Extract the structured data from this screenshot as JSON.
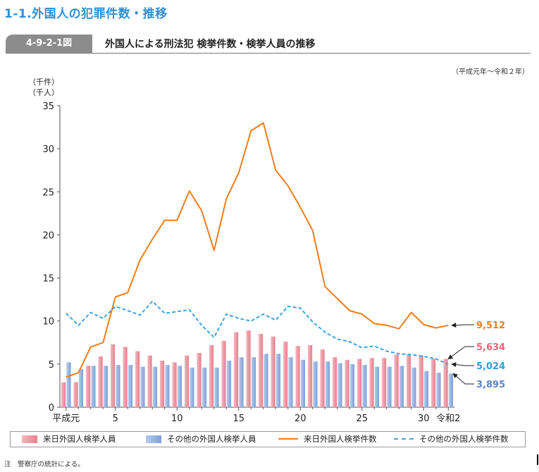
{
  "page": {
    "section_title": "1-1.外国人の犯罪件数・推移",
    "figure_number": "4-9-2-1図",
    "figure_title": "外国人による刑法犯 検挙件数・検挙人員の推移",
    "period_note": "（平成元年～令和２年）",
    "source_note": "注　警察庁の統計による。"
  },
  "chart_data": {
    "type": "bar",
    "title": "外国人による刑法犯 検挙件数・検挙人員の推移",
    "ylabel_lines": [
      "（千件）",
      "（千人）"
    ],
    "ylim": [
      0,
      35
    ],
    "yticks": [
      0,
      5,
      10,
      15,
      20,
      25,
      30,
      35
    ],
    "categories": [
      "平成元",
      "2",
      "3",
      "4",
      "5",
      "6",
      "7",
      "8",
      "9",
      "10",
      "11",
      "12",
      "13",
      "14",
      "15",
      "16",
      "17",
      "18",
      "19",
      "20",
      "21",
      "22",
      "23",
      "24",
      "25",
      "26",
      "27",
      "28",
      "29",
      "30",
      "令和元",
      "2"
    ],
    "xtick_labels": [
      {
        "index": 0,
        "text": "平成元"
      },
      {
        "index": 4,
        "text": "5"
      },
      {
        "index": 9,
        "text": "10"
      },
      {
        "index": 14,
        "text": "15"
      },
      {
        "index": 19,
        "text": "20"
      },
      {
        "index": 24,
        "text": "25"
      },
      {
        "index": 29,
        "text": "30"
      },
      {
        "index": 31,
        "text": "令和2"
      }
    ],
    "grid": false,
    "legend_placement": "bottom",
    "series": [
      {
        "name": "来日外国人検挙人員",
        "kind": "bar",
        "color": "#ef8f9c",
        "values": [
          2.9,
          2.9,
          4.8,
          5.9,
          7.3,
          7.0,
          6.5,
          6.0,
          5.4,
          5.2,
          6.0,
          6.3,
          7.2,
          7.7,
          8.7,
          8.9,
          8.5,
          8.2,
          7.6,
          7.1,
          7.2,
          6.7,
          5.8,
          5.5,
          5.6,
          5.7,
          5.7,
          6.1,
          6.1,
          6.0,
          5.6,
          5.6
        ]
      },
      {
        "name": "その他の外国人検挙人員",
        "kind": "bar",
        "color": "#8eb0e0",
        "values": [
          5.2,
          4.4,
          4.8,
          4.8,
          4.9,
          4.9,
          4.7,
          4.7,
          4.9,
          4.8,
          4.6,
          4.6,
          4.6,
          5.4,
          5.8,
          5.8,
          6.2,
          6.2,
          5.8,
          5.5,
          5.3,
          5.3,
          5.1,
          5.0,
          4.9,
          4.7,
          4.7,
          4.8,
          4.6,
          4.2,
          4.0,
          3.9
        ]
      },
      {
        "name": "来日外国人検挙件数",
        "kind": "line",
        "color": "#ef7d1a",
        "dash": "solid",
        "values": [
          3.5,
          4.0,
          7.0,
          7.5,
          12.8,
          13.3,
          17.1,
          19.5,
          21.7,
          21.7,
          25.1,
          22.8,
          18.2,
          24.2,
          27.2,
          32.1,
          33.0,
          27.5,
          25.7,
          23.2,
          20.5,
          14.0,
          12.6,
          11.2,
          10.8,
          9.7,
          9.5,
          9.1,
          11.0,
          9.6,
          9.2,
          9.5
        ]
      },
      {
        "name": "その他の外国人検挙件数",
        "kind": "line",
        "color": "#3aa6e0",
        "dash": "dashed",
        "values": [
          10.9,
          9.5,
          11.0,
          10.3,
          11.7,
          11.2,
          10.7,
          12.3,
          10.9,
          11.1,
          11.3,
          9.5,
          8.1,
          10.8,
          10.3,
          10.0,
          10.8,
          10.1,
          11.7,
          11.5,
          9.9,
          8.7,
          7.9,
          7.6,
          6.9,
          7.1,
          6.5,
          6.2,
          6.1,
          5.9,
          5.6,
          5.0
        ]
      }
    ],
    "end_labels": [
      {
        "text": "9,512",
        "color": "#ef7d1a",
        "series": 2
      },
      {
        "text": "5,634",
        "color": "#e86674",
        "series": 0
      },
      {
        "text": "5,024",
        "color": "#2f9ed6",
        "series": 3
      },
      {
        "text": "3,895",
        "color": "#5d85bf",
        "series": 1
      }
    ]
  }
}
